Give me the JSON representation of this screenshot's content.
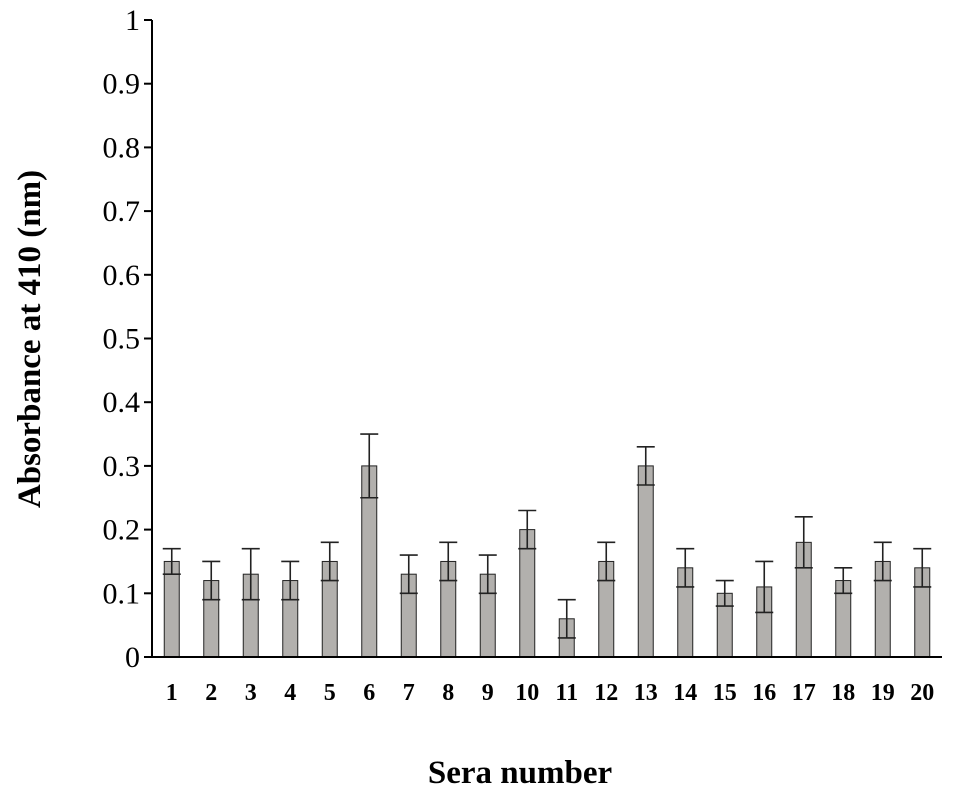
{
  "chart_data": {
    "type": "bar",
    "title": "",
    "xlabel": "Sera number",
    "ylabel": "Absorbance at 410 (nm)",
    "ylim": [
      0,
      1
    ],
    "yticks": [
      "0",
      "0.1",
      "0.2",
      "0.3",
      "0.4",
      "0.5",
      "0.6",
      "0.7",
      "0.8",
      "0.9",
      "1"
    ],
    "grid": false,
    "legend": "none",
    "categories": [
      "1",
      "2",
      "3",
      "4",
      "5",
      "6",
      "7",
      "8",
      "9",
      "10",
      "11",
      "12",
      "13",
      "14",
      "15",
      "16",
      "17",
      "18",
      "19",
      "20"
    ],
    "values": [
      0.15,
      0.12,
      0.13,
      0.12,
      0.15,
      0.3,
      0.13,
      0.15,
      0.13,
      0.2,
      0.06,
      0.15,
      0.3,
      0.14,
      0.1,
      0.11,
      0.18,
      0.12,
      0.15,
      0.14
    ],
    "error_upper": [
      0.17,
      0.15,
      0.17,
      0.15,
      0.18,
      0.35,
      0.16,
      0.18,
      0.16,
      0.23,
      0.09,
      0.18,
      0.33,
      0.17,
      0.12,
      0.15,
      0.22,
      0.14,
      0.18,
      0.17
    ],
    "error_lower": [
      0.13,
      0.09,
      0.09,
      0.09,
      0.12,
      0.25,
      0.1,
      0.12,
      0.1,
      0.17,
      0.03,
      0.12,
      0.27,
      0.11,
      0.08,
      0.07,
      0.14,
      0.1,
      0.12,
      0.11
    ],
    "colors": {
      "bar_fill": "#b2b0ad",
      "bar_stroke": "#222222",
      "axis": "#000000"
    }
  }
}
